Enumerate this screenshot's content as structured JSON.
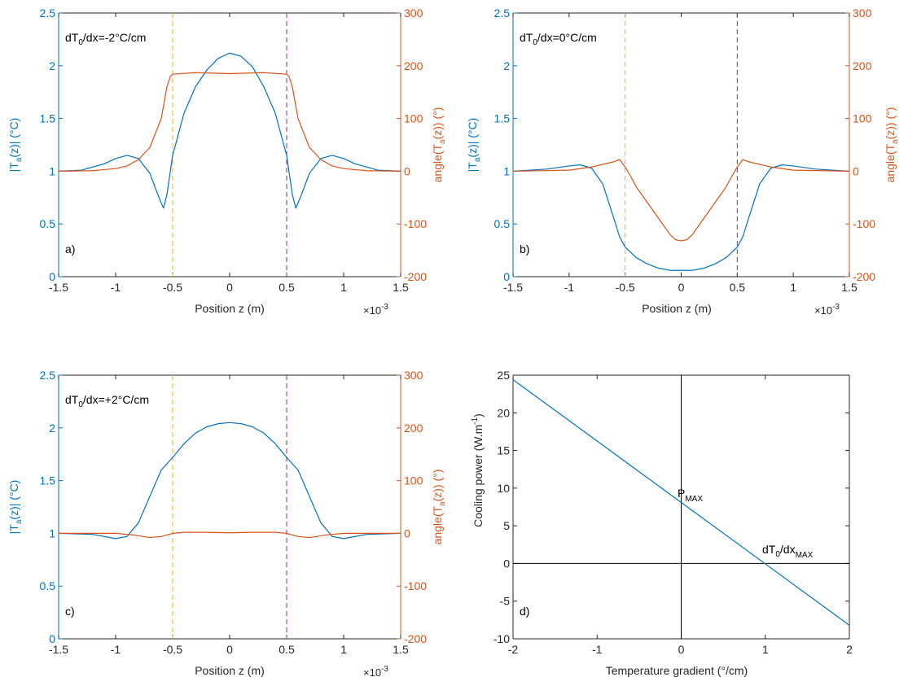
{
  "colors": {
    "blue": "#0072BD",
    "orange": "#D95319",
    "yellow": "#EDB120",
    "purple": "#7E2F8E",
    "axis": "#262626"
  },
  "exponent_label": {
    "base": "×10",
    "power": "-3"
  },
  "chart_data": [
    {
      "id": "a",
      "type": "line",
      "panel_label": "a)",
      "annotation": {
        "pre": "dT",
        "sub": "0",
        "post": "/dx=-2°C/cm"
      },
      "xlabel": "Position z (m)",
      "ylabel_left": {
        "pre": "|T",
        "sub": "a",
        "post": "(z)| (°C)"
      },
      "ylabel_right": {
        "pre": "angle(T",
        "sub": "a",
        "post": "(z)) (°)"
      },
      "xlim": [
        -1.5,
        1.5
      ],
      "ylim_left": [
        0,
        2.5
      ],
      "ylim_right": [
        -200,
        300
      ],
      "xticks": [
        "-1.5",
        "-1",
        "-0.5",
        "0",
        "0.5",
        "1",
        "1.5"
      ],
      "yticks_left": [
        "0",
        "0.5",
        "1",
        "1.5",
        "2",
        "2.5"
      ],
      "yticks_right": [
        "-200",
        "-100",
        "0",
        "100",
        "200",
        "300"
      ],
      "vlines": [
        {
          "x": -0.5,
          "color": "yellow"
        },
        {
          "x": 0.5,
          "color": "purple"
        }
      ],
      "series": [
        {
          "axis": "left",
          "color": "blue",
          "x": [
            -1.5,
            -1.3,
            -1.1,
            -1.0,
            -0.9,
            -0.8,
            -0.7,
            -0.62,
            -0.58,
            -0.55,
            -0.52,
            -0.5,
            -0.45,
            -0.4,
            -0.3,
            -0.2,
            -0.1,
            0.0,
            0.1,
            0.2,
            0.3,
            0.4,
            0.45,
            0.5,
            0.52,
            0.55,
            0.58,
            0.62,
            0.7,
            0.8,
            0.9,
            1.0,
            1.1,
            1.3,
            1.5
          ],
          "y": [
            1.0,
            1.01,
            1.07,
            1.12,
            1.15,
            1.12,
            0.98,
            0.75,
            0.65,
            0.78,
            1.0,
            1.15,
            1.35,
            1.55,
            1.8,
            1.96,
            2.07,
            2.12,
            2.09,
            1.99,
            1.8,
            1.55,
            1.35,
            1.15,
            1.0,
            0.78,
            0.65,
            0.75,
            0.98,
            1.12,
            1.15,
            1.12,
            1.07,
            1.01,
            1.0
          ]
        },
        {
          "axis": "right",
          "color": "orange",
          "x": [
            -1.5,
            -1.2,
            -1.0,
            -0.9,
            -0.8,
            -0.7,
            -0.6,
            -0.55,
            -0.52,
            -0.5,
            -0.3,
            0.0,
            0.3,
            0.5,
            0.52,
            0.55,
            0.6,
            0.7,
            0.8,
            0.9,
            1.0,
            1.2,
            1.5
          ],
          "y": [
            0,
            1,
            5,
            10,
            22,
            45,
            100,
            160,
            180,
            184,
            187,
            185,
            187,
            184,
            180,
            160,
            100,
            45,
            22,
            10,
            5,
            1,
            0
          ]
        }
      ]
    },
    {
      "id": "b",
      "type": "line",
      "panel_label": "b)",
      "annotation": {
        "pre": "dT",
        "sub": "0",
        "post": "/dx=0°C/cm"
      },
      "xlabel": "Position z (m)",
      "ylabel_left": {
        "pre": "|T",
        "sub": "a",
        "post": "(z)| (°C)"
      },
      "ylabel_right": {
        "pre": "angle(T",
        "sub": "a",
        "post": "(z)) (°)"
      },
      "xlim": [
        -1.5,
        1.5
      ],
      "ylim_left": [
        0,
        2.5
      ],
      "ylim_right": [
        -200,
        300
      ],
      "xticks": [
        "-1.5",
        "-1",
        "-0.5",
        "0",
        "0.5",
        "1",
        "1.5"
      ],
      "yticks_left": [
        "0",
        "0.5",
        "1",
        "1.5",
        "2",
        "2.5"
      ],
      "yticks_right": [
        "-200",
        "-100",
        "0",
        "100",
        "200",
        "300"
      ],
      "vlines": [
        {
          "x": -0.5,
          "color": "yellow"
        },
        {
          "x": 0.5,
          "color": "purple"
        }
      ],
      "series": [
        {
          "axis": "left",
          "color": "blue",
          "x": [
            -1.5,
            -1.2,
            -1.0,
            -0.9,
            -0.8,
            -0.7,
            -0.6,
            -0.55,
            -0.5,
            -0.4,
            -0.3,
            -0.2,
            -0.1,
            0.0,
            0.1,
            0.2,
            0.3,
            0.4,
            0.5,
            0.55,
            0.6,
            0.7,
            0.8,
            0.9,
            1.0,
            1.2,
            1.5
          ],
          "y": [
            1.0,
            1.02,
            1.05,
            1.06,
            1.03,
            0.88,
            0.55,
            0.38,
            0.28,
            0.18,
            0.12,
            0.08,
            0.06,
            0.06,
            0.06,
            0.08,
            0.12,
            0.18,
            0.28,
            0.38,
            0.55,
            0.88,
            1.03,
            1.06,
            1.05,
            1.02,
            1.0
          ]
        },
        {
          "axis": "right",
          "color": "orange",
          "x": [
            -1.5,
            -1.0,
            -0.8,
            -0.6,
            -0.55,
            -0.5,
            -0.45,
            -0.4,
            -0.3,
            -0.2,
            -0.1,
            -0.05,
            0.0,
            0.05,
            0.1,
            0.2,
            0.3,
            0.4,
            0.45,
            0.5,
            0.55,
            0.6,
            0.8,
            1.0,
            1.5
          ],
          "y": [
            0,
            2,
            8,
            18,
            22,
            8,
            -10,
            -30,
            -60,
            -90,
            -120,
            -130,
            -132,
            -130,
            -120,
            -90,
            -60,
            -30,
            -10,
            8,
            22,
            18,
            8,
            2,
            0
          ]
        }
      ]
    },
    {
      "id": "c",
      "type": "line",
      "panel_label": "c)",
      "annotation": {
        "pre": "dT",
        "sub": "0",
        "post": "/dx=+2°C/cm"
      },
      "xlabel": "Position z (m)",
      "ylabel_left": {
        "pre": "|T",
        "sub": "a",
        "post": "(z)| (°C)"
      },
      "ylabel_right": {
        "pre": "angle(T",
        "sub": "a",
        "post": "(z)) (°)"
      },
      "xlim": [
        -1.5,
        1.5
      ],
      "ylim_left": [
        0,
        2.5
      ],
      "ylim_right": [
        -200,
        300
      ],
      "xticks": [
        "-1.5",
        "-1",
        "-0.5",
        "0",
        "0.5",
        "1",
        "1.5"
      ],
      "yticks_left": [
        "0",
        "0.5",
        "1",
        "1.5",
        "2",
        "2.5"
      ],
      "yticks_right": [
        "-200",
        "-100",
        "0",
        "100",
        "200",
        "300"
      ],
      "vlines": [
        {
          "x": -0.5,
          "color": "yellow"
        },
        {
          "x": 0.5,
          "color": "purple"
        }
      ],
      "series": [
        {
          "axis": "left",
          "color": "blue",
          "x": [
            -1.5,
            -1.2,
            -1.0,
            -0.9,
            -0.8,
            -0.7,
            -0.6,
            -0.5,
            -0.4,
            -0.3,
            -0.2,
            -0.1,
            0.0,
            0.1,
            0.2,
            0.3,
            0.4,
            0.5,
            0.6,
            0.7,
            0.8,
            0.9,
            1.0,
            1.2,
            1.5
          ],
          "y": [
            1.0,
            0.99,
            0.95,
            0.97,
            1.1,
            1.35,
            1.6,
            1.72,
            1.85,
            1.95,
            2.01,
            2.04,
            2.05,
            2.04,
            2.01,
            1.95,
            1.85,
            1.72,
            1.6,
            1.35,
            1.1,
            0.97,
            0.95,
            0.99,
            1.0
          ]
        },
        {
          "axis": "right",
          "color": "orange",
          "x": [
            -1.5,
            -1.0,
            -0.85,
            -0.7,
            -0.6,
            -0.5,
            -0.4,
            -0.2,
            0.0,
            0.2,
            0.4,
            0.5,
            0.6,
            0.7,
            0.85,
            1.0,
            1.5
          ],
          "y": [
            0,
            0,
            -3,
            -8,
            -6,
            0,
            2,
            2,
            1,
            2,
            2,
            0,
            -6,
            -8,
            -3,
            0,
            0
          ]
        }
      ]
    },
    {
      "id": "d",
      "type": "line",
      "panel_label": "d)",
      "xlabel": "Temperature gradient (°/cm)",
      "ylabel_left": {
        "pre": "Cooling power (W.m",
        "sup": "-1",
        "post": ")"
      },
      "xlim": [
        -2,
        2
      ],
      "ylim_left": [
        -10,
        25
      ],
      "xticks": [
        "-2",
        "-1",
        "0",
        "1",
        "2"
      ],
      "yticks_left": [
        "-10",
        "-5",
        "0",
        "5",
        "10",
        "15",
        "20",
        "25"
      ],
      "annotations": [
        {
          "pre": "P",
          "sub": "MAX",
          "x": 0.0,
          "y": 9.0
        },
        {
          "pre": "dT",
          "sub": "0",
          "mid": "/dx",
          "sub2": "MAX",
          "x": 1.15,
          "y": 1.1
        }
      ],
      "series": [
        {
          "axis": "left",
          "color": "blue",
          "x": [
            -2,
            2
          ],
          "y": [
            24.4,
            -8.2
          ]
        }
      ],
      "reference_lines": {
        "h": 0,
        "v": 0
      }
    }
  ]
}
